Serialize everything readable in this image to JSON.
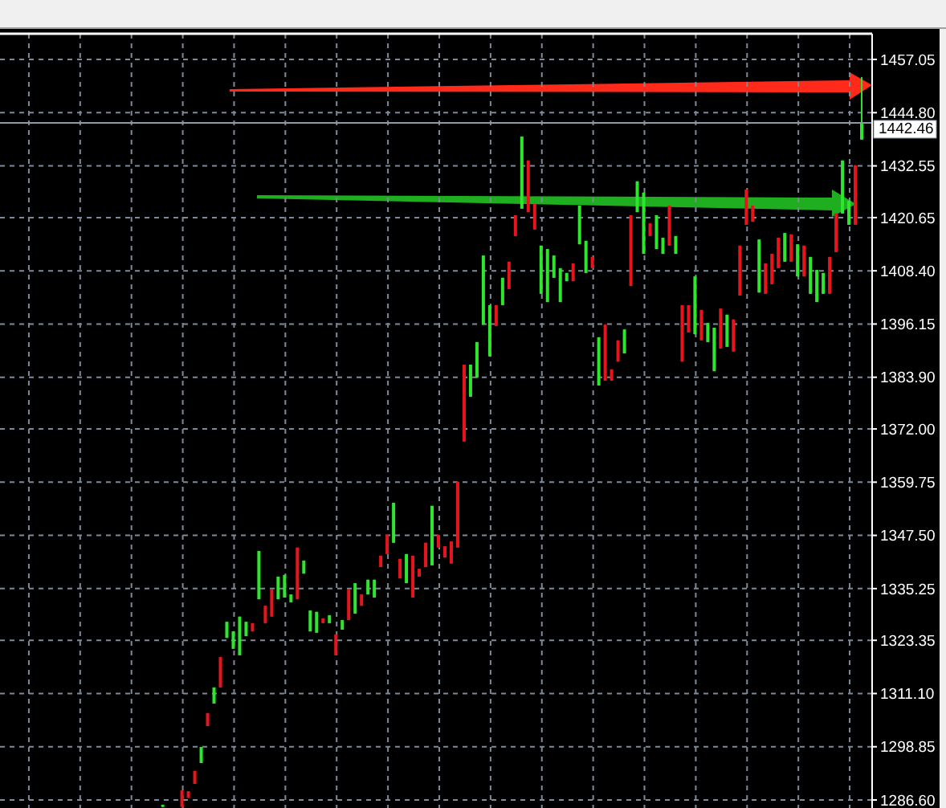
{
  "chart_data": {
    "type": "candlestick",
    "categories": [
      null,
      null,
      null,
      null,
      null,
      null,
      null,
      null,
      null,
      null,
      null,
      null,
      null,
      null,
      null,
      null,
      null,
      null,
      null,
      null,
      null,
      null,
      null,
      null,
      null,
      null,
      null,
      null,
      null,
      null,
      null,
      null,
      null,
      null,
      null,
      null,
      null,
      null,
      null,
      null,
      null,
      null,
      null,
      null,
      null,
      null,
      null,
      null,
      null,
      null,
      null,
      null,
      null,
      null,
      null,
      null,
      null,
      null,
      null,
      null,
      null,
      null,
      null,
      null,
      null,
      null,
      null,
      null,
      null,
      null,
      null,
      null,
      null,
      null,
      null,
      null,
      null,
      null,
      null,
      null,
      null,
      null,
      null,
      null,
      null,
      null,
      null,
      null,
      null,
      null,
      null,
      null,
      null,
      null,
      null,
      null,
      null,
      null,
      null,
      null,
      null,
      null,
      null,
      null,
      null,
      null,
      null,
      null,
      null,
      null,
      null,
      null,
      null,
      null,
      null,
      null,
      null,
      null,
      null,
      null,
      null,
      null,
      null,
      null,
      null,
      null,
      null,
      null,
      null,
      null,
      null,
      null,
      null,
      null,
      null,
      null
    ],
    "ohlc": [
      null,
      null,
      null,
      null,
      null,
      null,
      null,
      null,
      null,
      null,
      null,
      null,
      null,
      null,
      null,
      null,
      null,
      null,
      null,
      null,
      null,
      null,
      null,
      null,
      null,
      [
        1285.0,
        1285.5,
        1285.0,
        1285.5
      ],
      null,
      null,
      [
        1288.8,
        1288.8,
        1285.0,
        1285.0
      ],
      [
        1288.6,
        1288.6,
        1287.1,
        1287.1
      ],
      [
        1293.3,
        1293.3,
        1290.3,
        1290.3
      ],
      [
        1295.1,
        1298.8,
        1295.1,
        1298.8
      ],
      [
        1306.6,
        1306.6,
        1303.6,
        1303.6
      ],
      [
        1308.8,
        1312.5,
        1308.8,
        1312.5
      ],
      [
        1319.5,
        1319.5,
        1312.5,
        1312.5
      ],
      [
        1323.9,
        1327.6,
        1323.9,
        1327.6
      ],
      [
        1321.4,
        1325.4,
        1321.4,
        1325.4
      ],
      [
        1319.9,
        1328.8,
        1319.9,
        1328.8
      ],
      [
        1324.3,
        1327.6,
        1324.3,
        1327.6
      ],
      [
        1327.3,
        1327.3,
        1325.4,
        1325.4
      ],
      [
        1332.8,
        1343.9,
        1332.8,
        1343.9
      ],
      [
        1331.3,
        1331.3,
        1327.3,
        1327.3
      ],
      [
        1335.0,
        1335.0,
        1328.8,
        1328.8
      ],
      [
        1332.8,
        1338.0,
        1332.8,
        1338.0
      ],
      [
        1333.2,
        1338.4,
        1333.2,
        1338.4
      ],
      [
        1332.1,
        1333.9,
        1332.1,
        1333.9
      ],
      [
        1344.7,
        1344.7,
        1332.8,
        1332.8
      ],
      [
        1338.7,
        1341.7,
        1338.7,
        1341.7
      ],
      [
        1325.4,
        1330.2,
        1325.4,
        1330.2
      ],
      [
        1325.1,
        1329.9,
        1325.1,
        1329.9
      ],
      [
        1328.4,
        1328.4,
        1327.3,
        1327.3
      ],
      [
        1327.3,
        1329.1,
        1327.3,
        1329.1
      ],
      [
        1324.7,
        1324.7,
        1319.9,
        1319.9
      ],
      [
        1325.8,
        1328.0,
        1325.8,
        1328.0
      ],
      [
        1335.0,
        1335.0,
        1328.0,
        1328.0
      ],
      [
        1329.5,
        1336.5,
        1329.5,
        1336.5
      ],
      [
        1333.9,
        1333.9,
        1331.3,
        1331.3
      ],
      [
        1333.9,
        1337.3,
        1333.9,
        1337.3
      ],
      [
        1333.2,
        1337.3,
        1333.2,
        1337.3
      ],
      [
        1342.8,
        1342.8,
        1340.2,
        1340.2
      ],
      [
        1347.6,
        1347.6,
        1343.2,
        1343.2
      ],
      [
        1345.8,
        1355.0,
        1345.8,
        1355.0
      ],
      [
        1342.1,
        1342.1,
        1337.6,
        1337.6
      ],
      [
        1336.5,
        1343.2,
        1336.5,
        1343.2
      ],
      [
        1342.8,
        1342.8,
        1333.2,
        1333.2
      ],
      [
        1339.8,
        1339.8,
        1338.0,
        1338.0
      ],
      [
        1345.8,
        1345.8,
        1340.2,
        1340.2
      ],
      [
        1340.6,
        1354.3,
        1340.6,
        1354.3
      ],
      [
        1347.6,
        1347.6,
        1344.7,
        1344.7
      ],
      [
        1345.0,
        1345.0,
        1342.4,
        1342.4
      ],
      [
        1346.1,
        1346.1,
        1341.0,
        1341.0
      ],
      [
        1359.8,
        1359.8,
        1344.7,
        1344.7
      ],
      [
        1386.8,
        1386.8,
        1369.1,
        1369.1
      ],
      [
        1379.4,
        1386.8,
        1379.4,
        1386.8
      ],
      [
        1383.8,
        1392.0,
        1383.8,
        1392.0
      ],
      [
        1396.0,
        1411.9,
        1396.0,
        1411.9
      ],
      [
        1388.7,
        1400.5,
        1388.7,
        1400.5
      ],
      [
        1400.5,
        1400.5,
        1395.7,
        1395.7
      ],
      [
        1400.5,
        1406.8,
        1400.5,
        1406.8
      ],
      [
        1410.5,
        1410.5,
        1404.2,
        1404.2
      ],
      [
        1421.2,
        1421.2,
        1416.4,
        1416.4
      ],
      [
        1422.7,
        1439.3,
        1422.7,
        1439.3
      ],
      [
        1433.8,
        1433.8,
        1421.9,
        1421.9
      ],
      [
        1423.8,
        1423.8,
        1417.9,
        1417.9
      ],
      [
        1403.1,
        1414.2,
        1403.1,
        1414.2
      ],
      [
        1401.2,
        1413.4,
        1401.2,
        1413.4
      ],
      [
        1406.8,
        1411.9,
        1406.8,
        1411.9
      ],
      [
        1401.2,
        1409.0,
        1401.2,
        1409.0
      ],
      [
        1406.0,
        1407.9,
        1406.0,
        1407.9
      ],
      [
        1410.1,
        1410.1,
        1406.0,
        1406.0
      ],
      [
        1414.5,
        1423.4,
        1414.5,
        1423.4
      ],
      [
        1407.9,
        1415.3,
        1407.9,
        1415.3
      ],
      [
        1411.6,
        1411.6,
        1409.0,
        1409.0
      ],
      [
        1382.0,
        1393.1,
        1382.0,
        1393.1
      ],
      [
        1396.0,
        1396.0,
        1383.1,
        1383.1
      ],
      [
        1385.7,
        1385.7,
        1383.1,
        1383.1
      ],
      [
        1392.4,
        1392.4,
        1387.5,
        1387.5
      ],
      [
        1389.4,
        1394.9,
        1389.4,
        1394.9
      ],
      [
        1421.2,
        1421.2,
        1404.9,
        1404.9
      ],
      [
        1421.9,
        1429.0,
        1421.9,
        1429.0
      ],
      [
        1412.3,
        1426.4,
        1412.3,
        1426.4
      ],
      [
        1419.3,
        1419.3,
        1416.4,
        1416.4
      ],
      [
        1413.4,
        1421.2,
        1413.4,
        1421.2
      ],
      [
        1412.3,
        1416.0,
        1412.3,
        1416.0
      ],
      [
        1423.4,
        1423.4,
        1414.2,
        1414.2
      ],
      [
        1412.3,
        1416.4,
        1412.3,
        1416.4
      ],
      [
        1400.5,
        1400.5,
        1387.5,
        1387.5
      ],
      [
        1400.5,
        1400.5,
        1394.2,
        1394.2
      ],
      [
        1393.8,
        1407.1,
        1393.8,
        1407.1
      ],
      [
        1399.4,
        1399.4,
        1392.4,
        1392.4
      ],
      [
        1392.0,
        1396.4,
        1392.0,
        1396.4
      ],
      [
        1385.3,
        1395.3,
        1385.3,
        1395.3
      ],
      [
        1399.7,
        1399.7,
        1390.5,
        1390.5
      ],
      [
        1390.9,
        1398.3,
        1390.9,
        1398.3
      ],
      [
        1397.2,
        1397.2,
        1389.8,
        1389.8
      ],
      [
        1414.2,
        1414.2,
        1402.7,
        1402.7
      ],
      [
        1427.1,
        1427.1,
        1419.0,
        1419.0
      ],
      [
        1423.4,
        1423.4,
        1419.7,
        1419.7
      ],
      [
        1403.4,
        1415.6,
        1403.4,
        1415.6
      ],
      [
        1410.1,
        1410.1,
        1403.1,
        1403.1
      ],
      [
        1412.3,
        1412.3,
        1405.3,
        1405.3
      ],
      [
        1416.0,
        1416.0,
        1409.0,
        1409.0
      ],
      [
        1410.5,
        1417.1,
        1410.5,
        1417.1
      ],
      [
        1416.8,
        1416.8,
        1410.5,
        1410.5
      ],
      [
        1407.1,
        1414.5,
        1407.1,
        1414.5
      ],
      [
        1414.2,
        1414.2,
        1407.1,
        1407.1
      ],
      [
        1403.1,
        1411.6,
        1403.1,
        1411.6
      ],
      [
        1401.2,
        1408.6,
        1401.2,
        1408.6
      ],
      [
        1403.1,
        1407.9,
        1403.1,
        1407.9
      ],
      [
        1411.6,
        1411.6,
        1403.1,
        1403.1
      ],
      [
        1421.6,
        1421.6,
        1412.7,
        1412.7
      ],
      [
        1421.6,
        1433.8,
        1421.6,
        1433.8
      ],
      [
        1419.0,
        1424.5,
        1419.0,
        1424.5
      ],
      [
        1432.7,
        1432.7,
        1419.0,
        1419.0
      ],
      [
        1438.6,
        1453.0,
        1438.6,
        1442.46
      ],
      null
    ],
    "colors": [
      null,
      null,
      null,
      null,
      null,
      null,
      null,
      null,
      null,
      null,
      null,
      null,
      null,
      null,
      null,
      null,
      null,
      null,
      null,
      null,
      null,
      null,
      null,
      null,
      null,
      "#2ee62e",
      null,
      null,
      "#e8141c",
      "#e8141c",
      "#e8141c",
      "#2ee62e",
      "#e8141c",
      "#2ee62e",
      "#e8141c",
      "#2ee62e",
      "#2ee62e",
      "#2ee62e",
      "#2ee62e",
      "#e8141c",
      "#2ee62e",
      "#e8141c",
      "#e8141c",
      "#2ee62e",
      "#2ee62e",
      "#2ee62e",
      "#e8141c",
      "#2ee62e",
      "#2ee62e",
      "#2ee62e",
      "#e8141c",
      "#2ee62e",
      "#e8141c",
      "#2ee62e",
      "#e8141c",
      "#2ee62e",
      "#e8141c",
      "#2ee62e",
      "#2ee62e",
      "#e8141c",
      "#e8141c",
      "#2ee62e",
      "#e8141c",
      "#2ee62e",
      "#e8141c",
      "#e8141c",
      "#e8141c",
      "#2ee62e",
      "#e8141c",
      "#e8141c",
      "#e8141c",
      "#e8141c",
      "#e8141c",
      "#2ee62e",
      "#2ee62e",
      "#2ee62e",
      "#2ee62e",
      "#e8141c",
      "#2ee62e",
      "#e8141c",
      "#e8141c",
      "#2ee62e",
      "#e8141c",
      "#e8141c",
      "#2ee62e",
      "#2ee62e",
      "#2ee62e",
      "#2ee62e",
      "#2ee62e",
      "#e8141c",
      "#2ee62e",
      "#2ee62e",
      "#e8141c",
      "#2ee62e",
      "#e8141c",
      "#e8141c",
      "#e8141c",
      "#2ee62e",
      "#e8141c",
      "#2ee62e",
      "#2ee62e",
      "#e8141c",
      "#2ee62e",
      "#2ee62e",
      "#e8141c",
      "#2ee62e",
      "#e8141c",
      "#e8141c",
      "#2ee62e",
      "#e8141c",
      "#2ee62e",
      "#2ee62e",
      "#e8141c",
      "#2ee62e",
      "#e8141c",
      "#e8141c",
      "#e8141c",
      "#e8141c",
      "#2ee62e",
      "#e8141c",
      "#e8141c",
      "#e8141c",
      "#2ee62e",
      "#e8141c",
      "#2ee62e",
      "#e8141c",
      "#2ee62e",
      "#2ee62e",
      "#2ee62e",
      "#e8141c",
      "#e8141c",
      "#2ee62e",
      "#2ee62e",
      "#e8141c",
      "#2ee62e",
      null
    ],
    "ylim": [
      1284.75,
      1462.97
    ],
    "yticks": [
      1457.05,
      {
        "value": 1444.8,
        "label": "1444.80"
      },
      1432.55,
      1420.65,
      {
        "value": 1408.4,
        "label": "1408.40"
      },
      1396.15,
      {
        "value": 1383.9,
        "label": "1383.90"
      },
      {
        "value": 1372,
        "label": "1372.00"
      },
      1359.75,
      {
        "value": 1347.5,
        "label": "1347.50"
      },
      1335.25,
      1323.35,
      {
        "value": 1311.1,
        "label": "1311.10"
      },
      1298.85,
      {
        "value": 1286.6,
        "label": "1286.60"
      }
    ],
    "grid": true,
    "tick_labels": "y",
    "ref_lines": [
      {
        "axis": "y",
        "value": 1442.46,
        "label": "1442.46",
        "color": "#8c99a8"
      }
    ]
  }
}
